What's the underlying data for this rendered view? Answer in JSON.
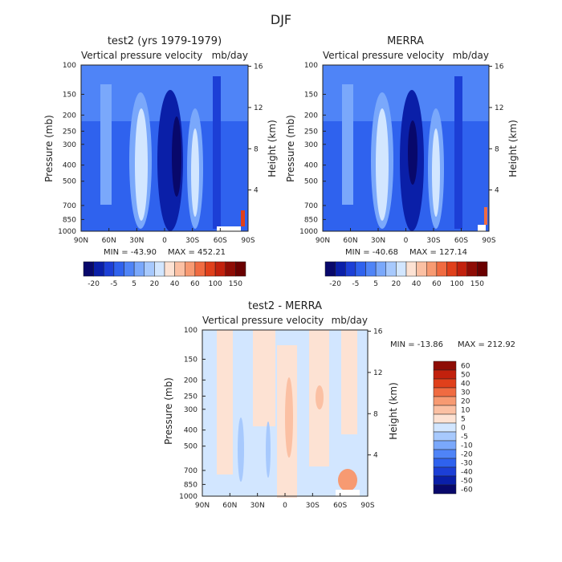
{
  "page_title": "DJF",
  "chart_data": [
    {
      "type": "heatmap",
      "title": "test2 (yrs 1979-1979)",
      "subtitle_left": "Vertical pressure velocity",
      "subtitle_right": "mb/day",
      "xlabel": "",
      "ylabel": "Pressure (mb)",
      "y2label": "Height (km)",
      "x_tick_labels": [
        "90N",
        "60N",
        "30N",
        "0",
        "30S",
        "60S",
        "90S"
      ],
      "x_values": [
        90,
        60,
        30,
        0,
        -30,
        -60,
        -90
      ],
      "y_tick_labels": [
        "100",
        "150",
        "200",
        "250",
        "300",
        "400",
        "500",
        "700",
        "850",
        "1000"
      ],
      "y_values": [
        100,
        150,
        200,
        250,
        300,
        400,
        500,
        700,
        850,
        1000
      ],
      "y2_tick_labels": [
        "16",
        "12",
        "8",
        "4"
      ],
      "y2_values": [
        16,
        12,
        8,
        4
      ],
      "min_label": "MIN = -43.90",
      "max_label": "MAX = 452.21",
      "colorbar_tick_labels": [
        "-20",
        "-5",
        "5",
        "20",
        "40",
        "60",
        "100",
        "150"
      ]
    },
    {
      "type": "heatmap",
      "title": "MERRA",
      "subtitle_left": "Vertical pressure velocity",
      "subtitle_right": "mb/day",
      "xlabel": "",
      "ylabel": "Pressure (mb)",
      "y2label": "Height (km)",
      "x_tick_labels": [
        "90N",
        "60N",
        "30N",
        "0",
        "30S",
        "60S",
        "90S"
      ],
      "x_values": [
        90,
        60,
        30,
        0,
        -30,
        -60,
        -90
      ],
      "y_tick_labels": [
        "100",
        "150",
        "200",
        "250",
        "300",
        "400",
        "500",
        "700",
        "850",
        "1000"
      ],
      "y_values": [
        100,
        150,
        200,
        250,
        300,
        400,
        500,
        700,
        850,
        1000
      ],
      "y2_tick_labels": [
        "16",
        "12",
        "8",
        "4"
      ],
      "y2_values": [
        16,
        12,
        8,
        4
      ],
      "min_label": "MIN = -40.68",
      "max_label": "MAX = 127.14",
      "colorbar_tick_labels": [
        "-20",
        "-5",
        "5",
        "20",
        "40",
        "60",
        "100",
        "150"
      ]
    },
    {
      "type": "heatmap",
      "title": "test2 - MERRA",
      "subtitle_left": "Vertical pressure velocity",
      "subtitle_right": "mb/day",
      "xlabel": "",
      "ylabel": "Pressure (mb)",
      "y2label": "Height (km)",
      "x_tick_labels": [
        "90N",
        "60N",
        "30N",
        "0",
        "30S",
        "60S",
        "90S"
      ],
      "x_values": [
        90,
        60,
        30,
        0,
        -30,
        -60,
        -90
      ],
      "y_tick_labels": [
        "100",
        "150",
        "200",
        "250",
        "300",
        "400",
        "500",
        "700",
        "850",
        "1000"
      ],
      "y_values": [
        100,
        150,
        200,
        250,
        300,
        400,
        500,
        700,
        850,
        1000
      ],
      "y2_tick_labels": [
        "16",
        "12",
        "8",
        "4"
      ],
      "y2_values": [
        16,
        12,
        8,
        4
      ],
      "min_label": "MIN = -13.86",
      "max_label": "MAX = 212.92",
      "colorbar_tick_labels": [
        "60",
        "50",
        "40",
        "30",
        "20",
        "10",
        "5",
        "0",
        "-5",
        "-10",
        "-20",
        "-30",
        "-40",
        "-50",
        "-60"
      ]
    }
  ],
  "colors": {
    "abs_scale": [
      "#08086b",
      "#0a1fa8",
      "#1c3fd6",
      "#2f62ee",
      "#4f84f7",
      "#7aa8fb",
      "#a7c9fd",
      "#d2e6ff",
      "#fde2d3",
      "#fbc0a3",
      "#f79a72",
      "#f06b41",
      "#e0401b",
      "#c2210d",
      "#8e0c05",
      "#6a0000"
    ],
    "diff_scale_top_to_bottom": [
      "#8e0c05",
      "#c2210d",
      "#e0401b",
      "#f06b41",
      "#f79a72",
      "#fbc0a3",
      "#fde2d3",
      "#d2e6ff",
      "#a7c9fd",
      "#7aa8fb",
      "#4f84f7",
      "#2f62ee",
      "#1c3fd6",
      "#0a1fa8",
      "#08086b"
    ]
  }
}
